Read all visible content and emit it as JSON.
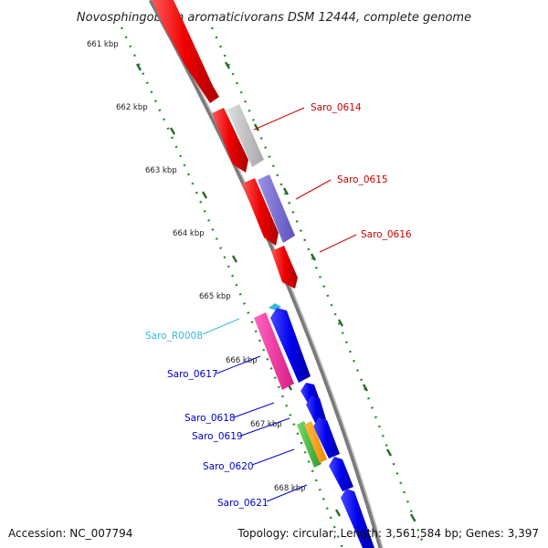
{
  "title": "Novosphingobium aromaticivorans DSM 12444, complete genome",
  "scale_labels": [
    "661 kbp",
    "662 kbp",
    "663 kbp",
    "664 kbp",
    "665 kbp",
    "666 kbp",
    "667 kbp",
    "668 kbp"
  ],
  "features": {
    "labeled": [
      {
        "name": "Saro_0614",
        "color": "#cc0000",
        "block_color": "#b8b8b8",
        "strand": "forward"
      },
      {
        "name": "Saro_0615",
        "color": "#cc0000",
        "block_color": "#7a6fd0",
        "strand": "forward"
      },
      {
        "name": "Saro_0616",
        "color": "#cc0000",
        "block_color": "#ee1111",
        "strand": "forward"
      },
      {
        "name": "Saro_R0008",
        "color": "#33bbdd",
        "block_color": "#33bbdd",
        "strand": "reverse"
      },
      {
        "name": "Saro_0617",
        "color": "#0000cc",
        "block_color": "#ee2a9a",
        "strand": "reverse"
      },
      {
        "name": "Saro_0618",
        "color": "#0000cc",
        "block_color": "#0000ee",
        "strand": "reverse"
      },
      {
        "name": "Saro_0619",
        "color": "#0000cc",
        "block_color": "#0000ee",
        "strand": "reverse"
      },
      {
        "name": "Saro_0620",
        "color": "#0000cc",
        "block_color": "#44bb44",
        "strand": "reverse"
      },
      {
        "name": "Saro_0621",
        "color": "#0000cc",
        "block_color": "#0000ee",
        "strand": "reverse"
      }
    ]
  },
  "colors": {
    "backbone": "#8a8a8a",
    "tick_dots": "#2a8a2a",
    "forward_gene": "#ee1111",
    "reverse_gene": "#0000ee",
    "orange_block": "#ff9900"
  },
  "footer": {
    "accession": "Accession: NC_007794",
    "stats": "Topology: circular; Length: 3,561,584 bp; Genes: 3,397"
  }
}
